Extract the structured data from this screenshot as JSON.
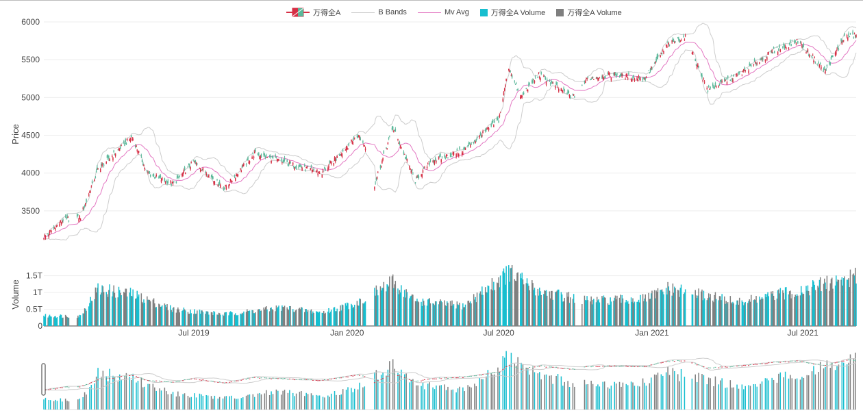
{
  "legend": {
    "candle": "万得全A",
    "bbands": "B Bands",
    "mvavg": "Mv Avg",
    "vol_up": "万得全A Volume",
    "vol_down": "万得全A Volume"
  },
  "colors": {
    "increasing": "#d62f45",
    "decreasing": "#5cb89a",
    "band": "#cccccc",
    "mvavg": "#e377c2",
    "vol_up": "#17becf",
    "vol_down": "#7f7f7f"
  },
  "chart_data": {
    "type": "candlestick",
    "price_axis": {
      "label": "Price",
      "range": [
        3100,
        6000
      ],
      "ticks": [
        3500,
        4000,
        4500,
        5000,
        5500,
        6000
      ]
    },
    "volume_axis": {
      "label": "Volume",
      "range": [
        0,
        1.8
      ],
      "ticks": [
        "0",
        "0.5T",
        "1T",
        "1.5T"
      ],
      "tick_values": [
        0,
        0.5,
        1,
        1.5
      ]
    },
    "x_ticks": [
      "Jul 2019",
      "Jan 2020",
      "Jul 2020",
      "Jan 2021",
      "Jul 2021"
    ],
    "price_keypoints": [
      {
        "date": "2019-01-04",
        "close": 3160
      },
      {
        "date": "2019-01-25",
        "close": 3380
      },
      {
        "date": "2019-02-15",
        "close": 3420
      },
      {
        "date": "2019-03-08",
        "close": 4050
      },
      {
        "date": "2019-04-01",
        "close": 4300
      },
      {
        "date": "2019-04-18",
        "close": 4480
      },
      {
        "date": "2019-05-06",
        "close": 4000
      },
      {
        "date": "2019-06-06",
        "close": 3850
      },
      {
        "date": "2019-07-01",
        "close": 4150
      },
      {
        "date": "2019-08-07",
        "close": 3800
      },
      {
        "date": "2019-09-12",
        "close": 4260
      },
      {
        "date": "2019-10-15",
        "close": 4150
      },
      {
        "date": "2019-12-02",
        "close": 4000
      },
      {
        "date": "2020-01-14",
        "close": 4500
      },
      {
        "date": "2020-01-23",
        "close": 4350
      },
      {
        "date": "2020-02-03",
        "close": 3850
      },
      {
        "date": "2020-02-25",
        "close": 4600
      },
      {
        "date": "2020-03-23",
        "close": 3900
      },
      {
        "date": "2020-04-10",
        "close": 4150
      },
      {
        "date": "2020-05-20",
        "close": 4300
      },
      {
        "date": "2020-06-10",
        "close": 4500
      },
      {
        "date": "2020-07-01",
        "close": 4700
      },
      {
        "date": "2020-07-13",
        "close": 5400
      },
      {
        "date": "2020-07-27",
        "close": 5000
      },
      {
        "date": "2020-08-18",
        "close": 5300
      },
      {
        "date": "2020-09-28",
        "close": 5000
      },
      {
        "date": "2020-10-15",
        "close": 5250
      },
      {
        "date": "2020-11-16",
        "close": 5300
      },
      {
        "date": "2020-12-23",
        "close": 5250
      },
      {
        "date": "2021-01-20",
        "close": 5700
      },
      {
        "date": "2021-02-10",
        "close": 5800
      },
      {
        "date": "2021-03-09",
        "close": 5100
      },
      {
        "date": "2021-04-15",
        "close": 5300
      },
      {
        "date": "2021-05-25",
        "close": 5600
      },
      {
        "date": "2021-06-25",
        "close": 5750
      },
      {
        "date": "2021-07-28",
        "close": 5350
      },
      {
        "date": "2021-08-20",
        "close": 5800
      },
      {
        "date": "2021-09-01",
        "close": 5820
      }
    ],
    "volume_keypoints": [
      {
        "date": "2019-01-04",
        "value": 0.3
      },
      {
        "date": "2019-02-15",
        "value": 0.3
      },
      {
        "date": "2019-03-08",
        "value": 1.1
      },
      {
        "date": "2019-04-18",
        "value": 0.95
      },
      {
        "date": "2019-06-06",
        "value": 0.5
      },
      {
        "date": "2019-08-07",
        "value": 0.35
      },
      {
        "date": "2019-10-15",
        "value": 0.55
      },
      {
        "date": "2019-12-02",
        "value": 0.4
      },
      {
        "date": "2020-01-14",
        "value": 0.7
      },
      {
        "date": "2020-02-25",
        "value": 1.3
      },
      {
        "date": "2020-03-23",
        "value": 0.75
      },
      {
        "date": "2020-05-20",
        "value": 0.6
      },
      {
        "date": "2020-07-13",
        "value": 1.6
      },
      {
        "date": "2020-08-18",
        "value": 1.05
      },
      {
        "date": "2020-10-15",
        "value": 0.75
      },
      {
        "date": "2020-12-23",
        "value": 0.8
      },
      {
        "date": "2021-01-20",
        "value": 1.1
      },
      {
        "date": "2021-03-09",
        "value": 0.9
      },
      {
        "date": "2021-04-15",
        "value": 0.7
      },
      {
        "date": "2021-06-25",
        "value": 1.05
      },
      {
        "date": "2021-08-20",
        "value": 1.4
      },
      {
        "date": "2021-09-01",
        "value": 1.45
      }
    ],
    "date_range": [
      "2019-01-02",
      "2021-09-03"
    ],
    "series": [
      {
        "name": "万得全A",
        "kind": "candlestick"
      },
      {
        "name": "B Bands",
        "kind": "line"
      },
      {
        "name": "Mv Avg",
        "kind": "line"
      },
      {
        "name": "万得全A Volume",
        "kind": "bar"
      },
      {
        "name": "万得全A Volume",
        "kind": "bar"
      }
    ]
  }
}
